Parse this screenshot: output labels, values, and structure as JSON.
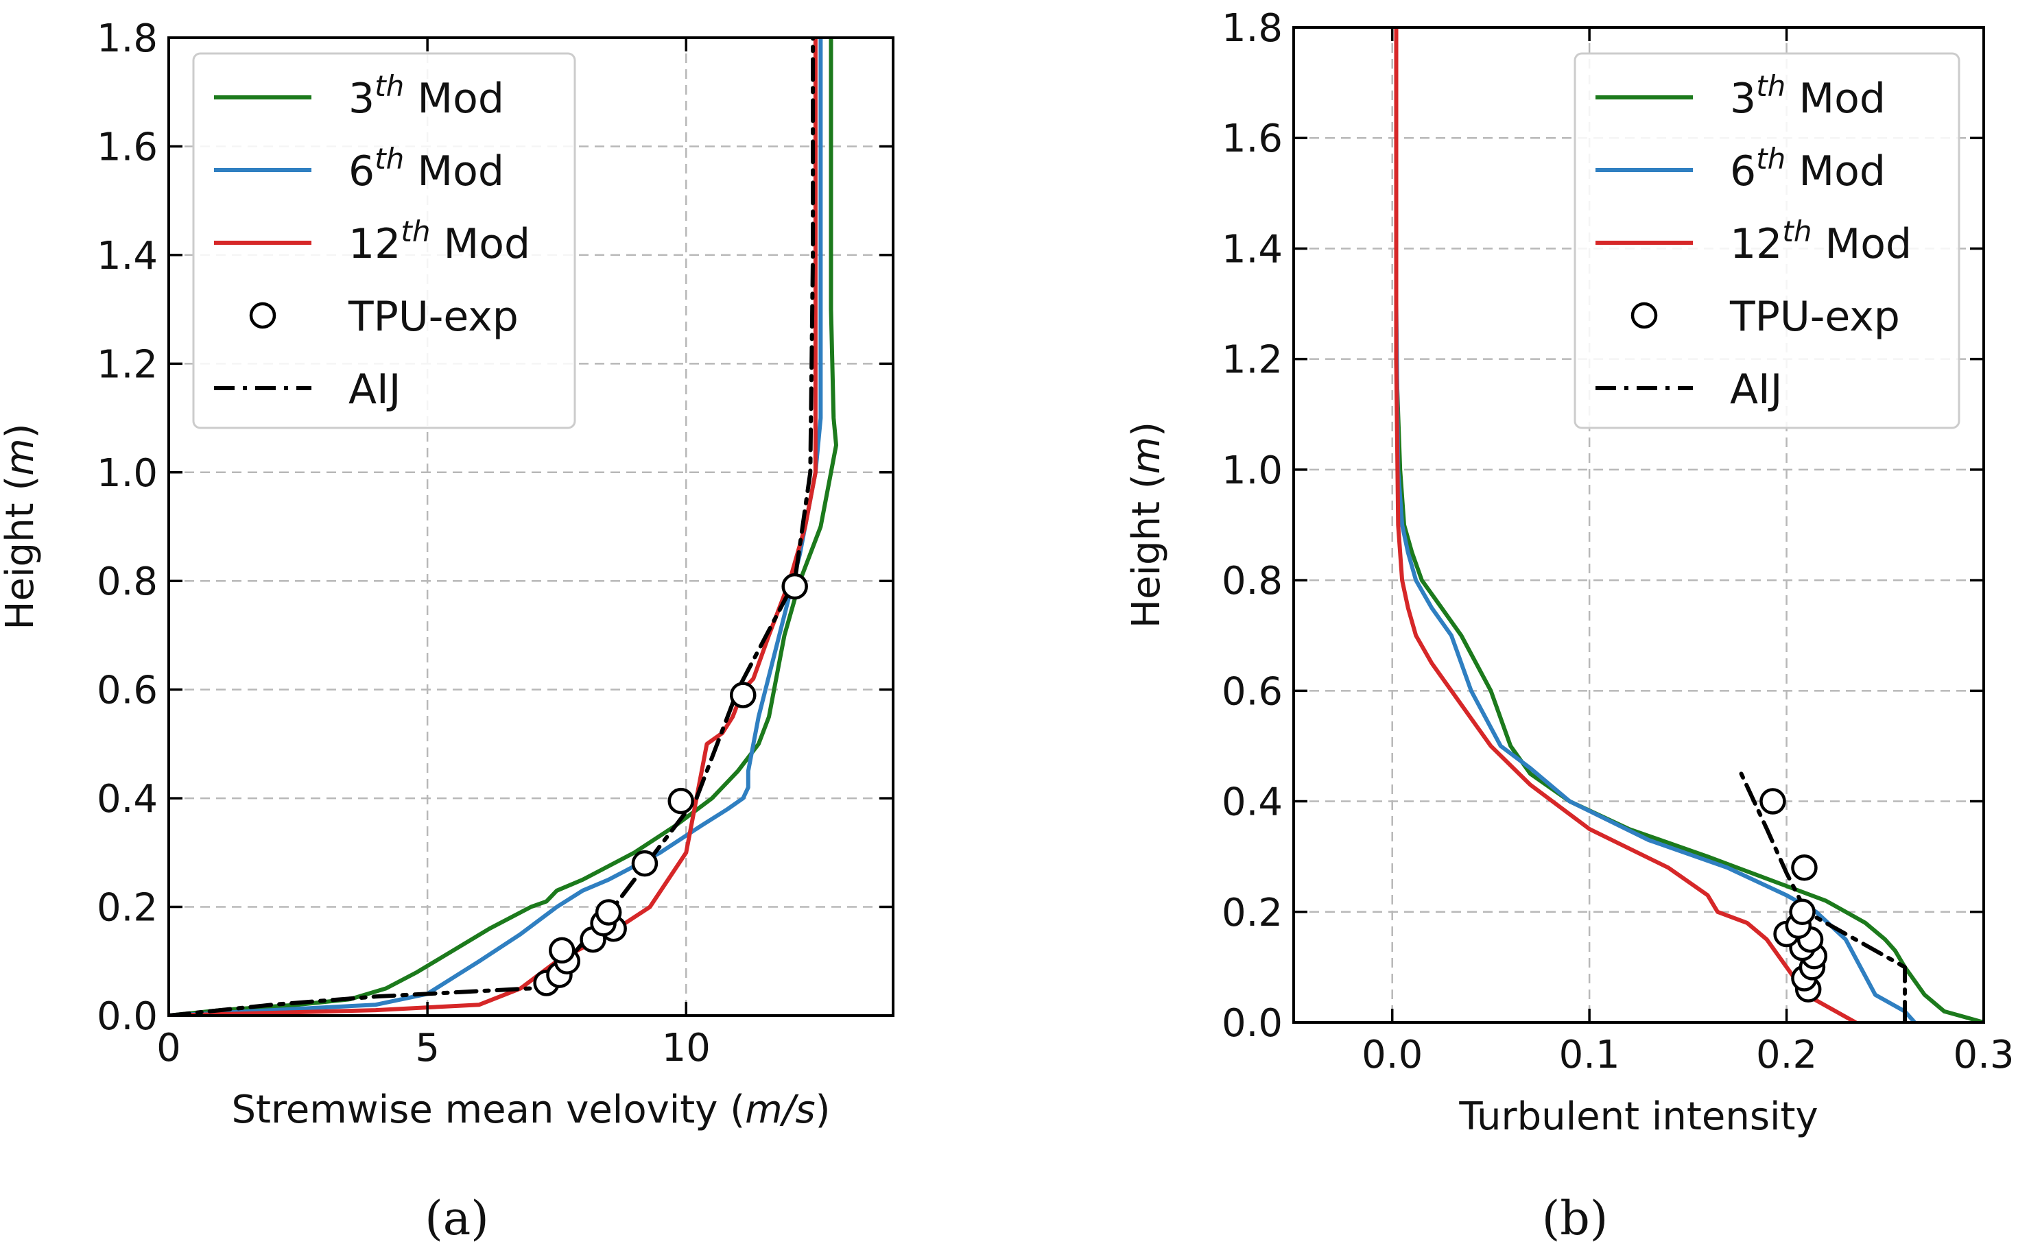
{
  "panel_labels": [
    "(a)",
    "(b)"
  ],
  "chart_data": [
    {
      "type": "line",
      "title": "",
      "xlabel": "Stremwise mean velovity",
      "xlabel_unit": "m/s",
      "ylabel": "Height",
      "ylabel_unit": "m",
      "xlim": [
        0,
        14
      ],
      "ylim": [
        0,
        1.8
      ],
      "xticks": [
        0,
        5,
        10
      ],
      "xtick_labels": [
        "0",
        "5",
        "10"
      ],
      "yticks": [
        0,
        0.2,
        0.4,
        0.6,
        0.8,
        1.0,
        1.2,
        1.4,
        1.6,
        1.8
      ],
      "ytick_labels": [
        "0.0",
        "0.2",
        "0.4",
        "0.6",
        "0.8",
        "1.0",
        "1.2",
        "1.4",
        "1.6",
        "1.8"
      ],
      "grid": true,
      "legend_position": "upper-left",
      "legend": [
        {
          "label_main": "3",
          "label_sup": "th",
          "label_tail": " Mod",
          "series": "3rd"
        },
        {
          "label_main": "6",
          "label_sup": "th",
          "label_tail": " Mod",
          "series": "6th"
        },
        {
          "label_main": "12",
          "label_sup": "th",
          "label_tail": " Mod",
          "series": "12th"
        },
        {
          "label_main": "TPU-exp",
          "label_sup": "",
          "label_tail": "",
          "series": "tpu"
        },
        {
          "label_main": "AIJ",
          "label_sup": "",
          "label_tail": "",
          "series": "aij"
        }
      ],
      "series": [
        {
          "id": "3rd",
          "name": "3th Mod",
          "color": "#1c7a1c",
          "style": "solid",
          "x": [
            0,
            1,
            2.5,
            3.5,
            4.2,
            4.8,
            5.5,
            6.2,
            7,
            7.3,
            7.5,
            8,
            9,
            9.8,
            10.5,
            11,
            11.4,
            11.6,
            11.7,
            11.9,
            12.2,
            12.6,
            12.8,
            12.9,
            12.85,
            12.8,
            12.8,
            12.8
          ],
          "y": [
            0,
            0.01,
            0.02,
            0.03,
            0.05,
            0.08,
            0.12,
            0.16,
            0.2,
            0.21,
            0.23,
            0.25,
            0.3,
            0.35,
            0.4,
            0.45,
            0.5,
            0.55,
            0.6,
            0.7,
            0.8,
            0.9,
            1.0,
            1.05,
            1.1,
            1.3,
            1.6,
            1.8
          ]
        },
        {
          "id": "6th",
          "name": "6th Mod",
          "color": "#2f7fc1",
          "style": "solid",
          "x": [
            0,
            2,
            4,
            5,
            5.5,
            6,
            6.8,
            7.5,
            8,
            8.5,
            9.5,
            10.3,
            10.8,
            11.1,
            11.2,
            11.2,
            11.4,
            11.8,
            12.2,
            12.5,
            12.6,
            12.6,
            12.6
          ],
          "y": [
            0,
            0.01,
            0.02,
            0.04,
            0.07,
            0.1,
            0.15,
            0.2,
            0.23,
            0.25,
            0.3,
            0.35,
            0.38,
            0.4,
            0.42,
            0.45,
            0.55,
            0.7,
            0.85,
            1.0,
            1.1,
            1.4,
            1.8
          ]
        },
        {
          "id": "12th",
          "name": "12th Mod",
          "color": "#d62728",
          "style": "solid",
          "x": [
            0,
            2,
            4,
            6,
            6.8,
            7.5,
            8.5,
            9.3,
            10,
            10.2,
            10.4,
            10.7,
            10.9,
            11.1,
            11.3,
            11.6,
            12,
            12.3,
            12.5,
            12.5,
            12.5
          ],
          "y": [
            0,
            0.005,
            0.01,
            0.02,
            0.05,
            0.1,
            0.15,
            0.2,
            0.3,
            0.4,
            0.5,
            0.52,
            0.55,
            0.6,
            0.62,
            0.7,
            0.8,
            0.9,
            1.0,
            1.4,
            1.8
          ]
        },
        {
          "id": "aij",
          "name": "AIJ",
          "color": "#000000",
          "style": "dashdot",
          "x": [
            0,
            2,
            4,
            6,
            7,
            7.7,
            8.6,
            9.4,
            10.2,
            11,
            12.1,
            12.4,
            12.45,
            12.45
          ],
          "y": [
            0,
            0.02,
            0.035,
            0.045,
            0.05,
            0.1,
            0.2,
            0.3,
            0.4,
            0.6,
            0.8,
            1.0,
            1.4,
            1.8
          ]
        }
      ],
      "scatter": {
        "id": "tpu",
        "name": "TPU-exp",
        "x": [
          7.3,
          7.55,
          7.7,
          7.6,
          8.2,
          8.6,
          8.4,
          8.5,
          9.2,
          9.9,
          11.1,
          12.1
        ],
        "y": [
          0.06,
          0.075,
          0.1,
          0.12,
          0.14,
          0.16,
          0.17,
          0.19,
          0.28,
          0.395,
          0.59,
          0.79
        ]
      }
    },
    {
      "type": "line",
      "title": "",
      "xlabel": "Turbulent intensity",
      "xlabel_unit": "",
      "ylabel": "Height",
      "ylabel_unit": "m",
      "xlim": [
        -0.05,
        0.3
      ],
      "ylim": [
        0,
        1.8
      ],
      "xticks": [
        0.0,
        0.1,
        0.2,
        0.3
      ],
      "xtick_labels": [
        "0.0",
        "0.1",
        "0.2",
        "0.3"
      ],
      "yticks": [
        0,
        0.2,
        0.4,
        0.6,
        0.8,
        1.0,
        1.2,
        1.4,
        1.6,
        1.8
      ],
      "ytick_labels": [
        "0.0",
        "0.2",
        "0.4",
        "0.6",
        "0.8",
        "1.0",
        "1.2",
        "1.4",
        "1.6",
        "1.8"
      ],
      "grid": true,
      "legend_position": "upper-right",
      "legend": [
        {
          "label_main": "3",
          "label_sup": "th",
          "label_tail": " Mod",
          "series": "3rd"
        },
        {
          "label_main": "6",
          "label_sup": "th",
          "label_tail": " Mod",
          "series": "6th"
        },
        {
          "label_main": "12",
          "label_sup": "th",
          "label_tail": " Mod",
          "series": "12th"
        },
        {
          "label_main": "TPU-exp",
          "label_sup": "",
          "label_tail": "",
          "series": "tpu"
        },
        {
          "label_main": "AIJ",
          "label_sup": "",
          "label_tail": "",
          "series": "aij"
        }
      ],
      "series": [
        {
          "id": "3rd",
          "name": "3th Mod",
          "color": "#1c7a1c",
          "style": "solid",
          "x": [
            0.3,
            0.29,
            0.28,
            0.27,
            0.26,
            0.255,
            0.25,
            0.24,
            0.23,
            0.22,
            0.205,
            0.16,
            0.12,
            0.09,
            0.07,
            0.06,
            0.05,
            0.035,
            0.025,
            0.015,
            0.01,
            0.006,
            0.004,
            0.003,
            0.002,
            0.002,
            0.002
          ],
          "y": [
            0,
            0.01,
            0.02,
            0.05,
            0.1,
            0.13,
            0.15,
            0.18,
            0.2,
            0.22,
            0.24,
            0.3,
            0.35,
            0.4,
            0.45,
            0.5,
            0.6,
            0.7,
            0.75,
            0.8,
            0.85,
            0.9,
            1.0,
            1.1,
            1.2,
            1.5,
            1.8
          ]
        },
        {
          "id": "6th",
          "name": "6th Mod",
          "color": "#2f7fc1",
          "style": "solid",
          "x": [
            0.265,
            0.26,
            0.245,
            0.23,
            0.215,
            0.2,
            0.17,
            0.13,
            0.09,
            0.07,
            0.055,
            0.04,
            0.03,
            0.02,
            0.012,
            0.008,
            0.005,
            0.003,
            0.002,
            0.002
          ],
          "y": [
            0,
            0.02,
            0.05,
            0.15,
            0.2,
            0.23,
            0.28,
            0.33,
            0.4,
            0.46,
            0.5,
            0.6,
            0.7,
            0.75,
            0.8,
            0.85,
            0.9,
            1.0,
            1.3,
            1.8
          ]
        },
        {
          "id": "12th",
          "name": "12th Mod",
          "color": "#d62728",
          "style": "solid",
          "x": [
            0.235,
            0.225,
            0.21,
            0.2,
            0.19,
            0.18,
            0.165,
            0.16,
            0.14,
            0.1,
            0.07,
            0.05,
            0.03,
            0.02,
            0.012,
            0.008,
            0.005,
            0.003,
            0.002,
            0.002
          ],
          "y": [
            0,
            0.02,
            0.05,
            0.1,
            0.15,
            0.18,
            0.2,
            0.23,
            0.28,
            0.35,
            0.43,
            0.5,
            0.6,
            0.65,
            0.7,
            0.75,
            0.8,
            0.9,
            1.2,
            1.8
          ]
        },
        {
          "id": "aij",
          "name": "AIJ",
          "color": "#000000",
          "style": "dashdot",
          "x": [
            0.26,
            0.26,
            0.235,
            0.21,
            0.2,
            0.19,
            0.177
          ],
          "y": [
            0,
            0.1,
            0.15,
            0.2,
            0.27,
            0.35,
            0.45
          ]
        }
      ],
      "scatter": {
        "id": "tpu",
        "name": "TPU-exp",
        "x": [
          0.211,
          0.209,
          0.213,
          0.214,
          0.208,
          0.212,
          0.2,
          0.206,
          0.208,
          0.209,
          0.193
        ],
        "y": [
          0.06,
          0.08,
          0.1,
          0.12,
          0.135,
          0.15,
          0.16,
          0.175,
          0.2,
          0.28,
          0.4
        ]
      }
    }
  ]
}
